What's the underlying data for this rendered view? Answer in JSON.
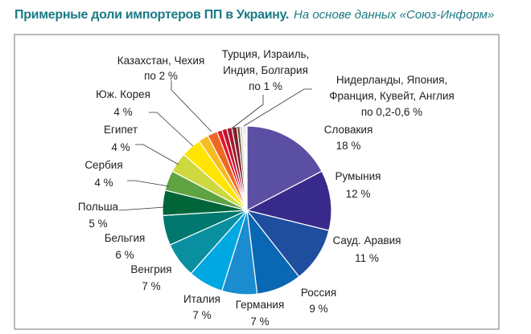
{
  "title": "Примерные доли импортеров ПП в Украину.",
  "subtitle": "На основе данных «Союз-Информ»",
  "chart_data": {
    "type": "pie",
    "title": "Примерные доли импортеров ПП в Украину.",
    "start": "top",
    "direction": "clockwise",
    "slices": [
      {
        "name": "Словакия",
        "value": 18,
        "color": "#5b4fa3"
      },
      {
        "name": "Румыния",
        "value": 12,
        "color": "#372a8a"
      },
      {
        "name": "Сауд. Аравия",
        "value": 11,
        "color": "#1f4e9f"
      },
      {
        "name": "Россия",
        "value": 9,
        "color": "#0a67b4"
      },
      {
        "name": "Германия",
        "value": 7,
        "color": "#1a8ccf"
      },
      {
        "name": "Италия",
        "value": 7,
        "color": "#00a8e2"
      },
      {
        "name": "Венгрия",
        "value": 7,
        "color": "#0a8fa0"
      },
      {
        "name": "Бельгия",
        "value": 6,
        "color": "#00786f"
      },
      {
        "name": "Польша",
        "value": 5,
        "color": "#00663a"
      },
      {
        "name": "Сербия",
        "value": 4,
        "color": "#5fa342"
      },
      {
        "name": "Египет",
        "value": 4,
        "color": "#cdd93f"
      },
      {
        "name": "Юж. Корея",
        "value": 4,
        "color": "#ffe500"
      },
      {
        "name": "Казахстан",
        "value": 2,
        "color": "#f7bc22"
      },
      {
        "name": "Чехия",
        "value": 2,
        "color": "#ec6a24"
      },
      {
        "name": "Турция",
        "value": 1,
        "color": "#e2142a"
      },
      {
        "name": "Израиль",
        "value": 1,
        "color": "#c4122e"
      },
      {
        "name": "Индия",
        "value": 1,
        "color": "#a31a32"
      },
      {
        "name": "Болгария",
        "value": 1,
        "color": "#7f1f2e"
      },
      {
        "name": "Нидерланды",
        "value": 0.6,
        "color": "#6e5234"
      },
      {
        "name": "Япония",
        "value": 0.5,
        "color": "#cfcfcf"
      },
      {
        "name": "Франция",
        "value": 0.4,
        "color": "#e6e6e6"
      },
      {
        "name": "Кувейт",
        "value": 0.3,
        "color": "#bdbdbd"
      },
      {
        "name": "Англия",
        "value": 0.2,
        "color": "#f2f2f2"
      }
    ],
    "labels": {
      "slovakia": [
        "Словакия",
        "18 %"
      ],
      "romania": [
        "Румыния",
        "12 %"
      ],
      "saudi": [
        "Сауд. Аравия",
        "11 %"
      ],
      "russia": [
        "Россия",
        "9 %"
      ],
      "germany": [
        "Германия",
        "7 %"
      ],
      "italy": [
        "Италия",
        "7 %"
      ],
      "hungary": [
        "Венгрия",
        "7 %"
      ],
      "belgium": [
        "Бельгия",
        "6 %"
      ],
      "poland": [
        "Польша",
        "5 %"
      ],
      "serbia": [
        "Сербия",
        "4 %"
      ],
      "egypt": [
        "Египет",
        "4 %"
      ],
      "korea": [
        "Юж. Корея",
        "4 %"
      ],
      "kazakh": [
        "Казахстан, Чехия",
        "по 2 %"
      ],
      "turkey": [
        "Турция, Израиль,",
        "Индия, Болгария",
        "по 1 %"
      ],
      "small": [
        "Нидерланды, Япония,",
        "Франция, Кувейт, Англия",
        "по 0,2-0,6 %"
      ]
    }
  }
}
